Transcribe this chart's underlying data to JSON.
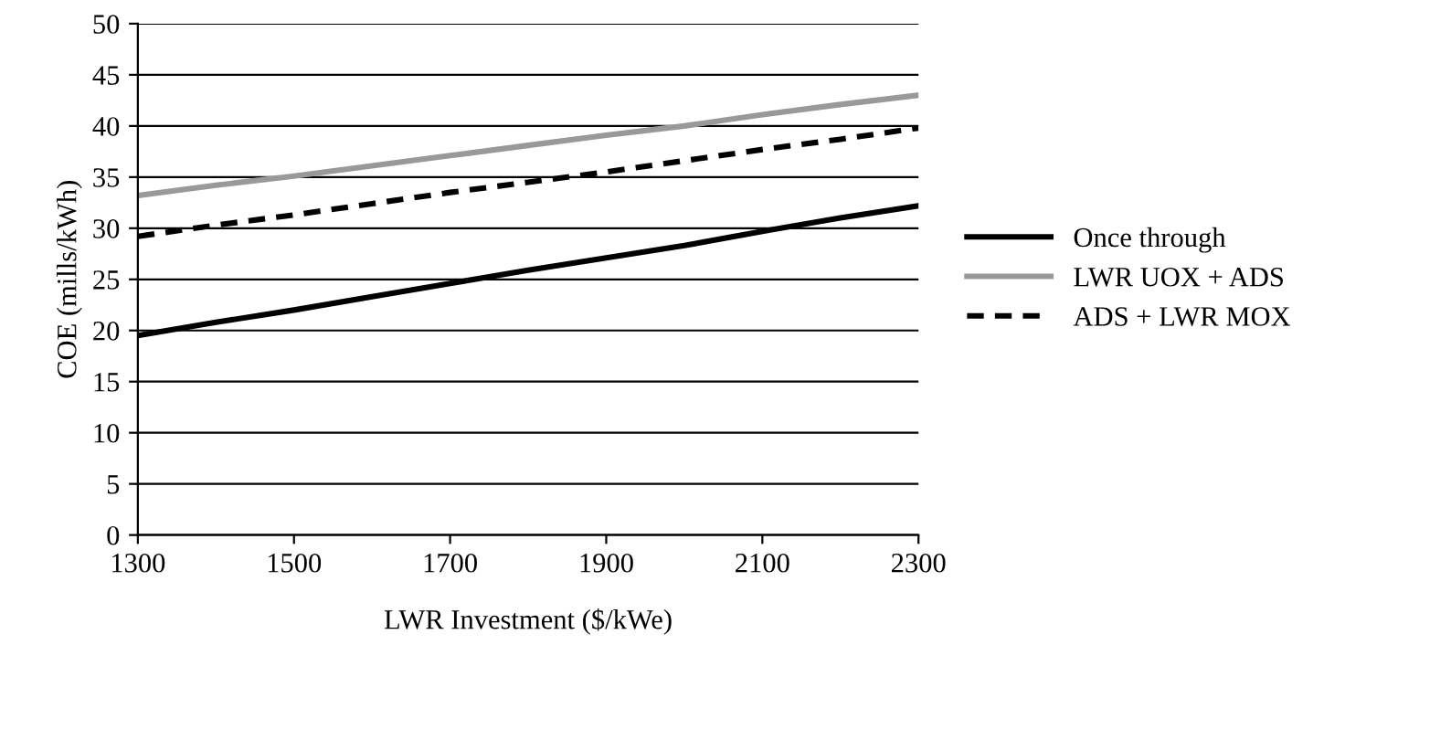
{
  "chart_data": {
    "type": "line",
    "xlabel": "LWR Investment ($/kWe)",
    "ylabel": "COE (mills/kWh)",
    "x": [
      1300,
      1400,
      1500,
      1600,
      1700,
      1800,
      1900,
      2000,
      2100,
      2200,
      2300
    ],
    "series": [
      {
        "name": "Once through",
        "color": "#000000",
        "line_style": "solid",
        "values": [
          19.5,
          20.8,
          22.0,
          23.3,
          24.6,
          25.9,
          27.1,
          28.3,
          29.7,
          31.0,
          32.2
        ]
      },
      {
        "name": "LWR UOX + ADS",
        "color": "#999999",
        "line_style": "solid",
        "values": [
          33.2,
          34.2,
          35.1,
          36.1,
          37.1,
          38.1,
          39.1,
          40.0,
          41.1,
          42.1,
          43.0
        ]
      },
      {
        "name": "ADS + LWR MOX",
        "color": "#000000",
        "line_style": "dashed",
        "values": [
          29.2,
          30.3,
          31.3,
          32.4,
          33.5,
          34.5,
          35.5,
          36.6,
          37.7,
          38.7,
          39.8
        ]
      }
    ],
    "xlim": [
      1300,
      2300
    ],
    "xticks": [
      1300,
      1500,
      1700,
      1900,
      2100,
      2300
    ],
    "ylim": [
      0,
      50
    ],
    "yticks": [
      0,
      5,
      10,
      15,
      20,
      25,
      30,
      35,
      40,
      45,
      50
    ],
    "grid": "y",
    "legend": "right",
    "marker": "none"
  }
}
